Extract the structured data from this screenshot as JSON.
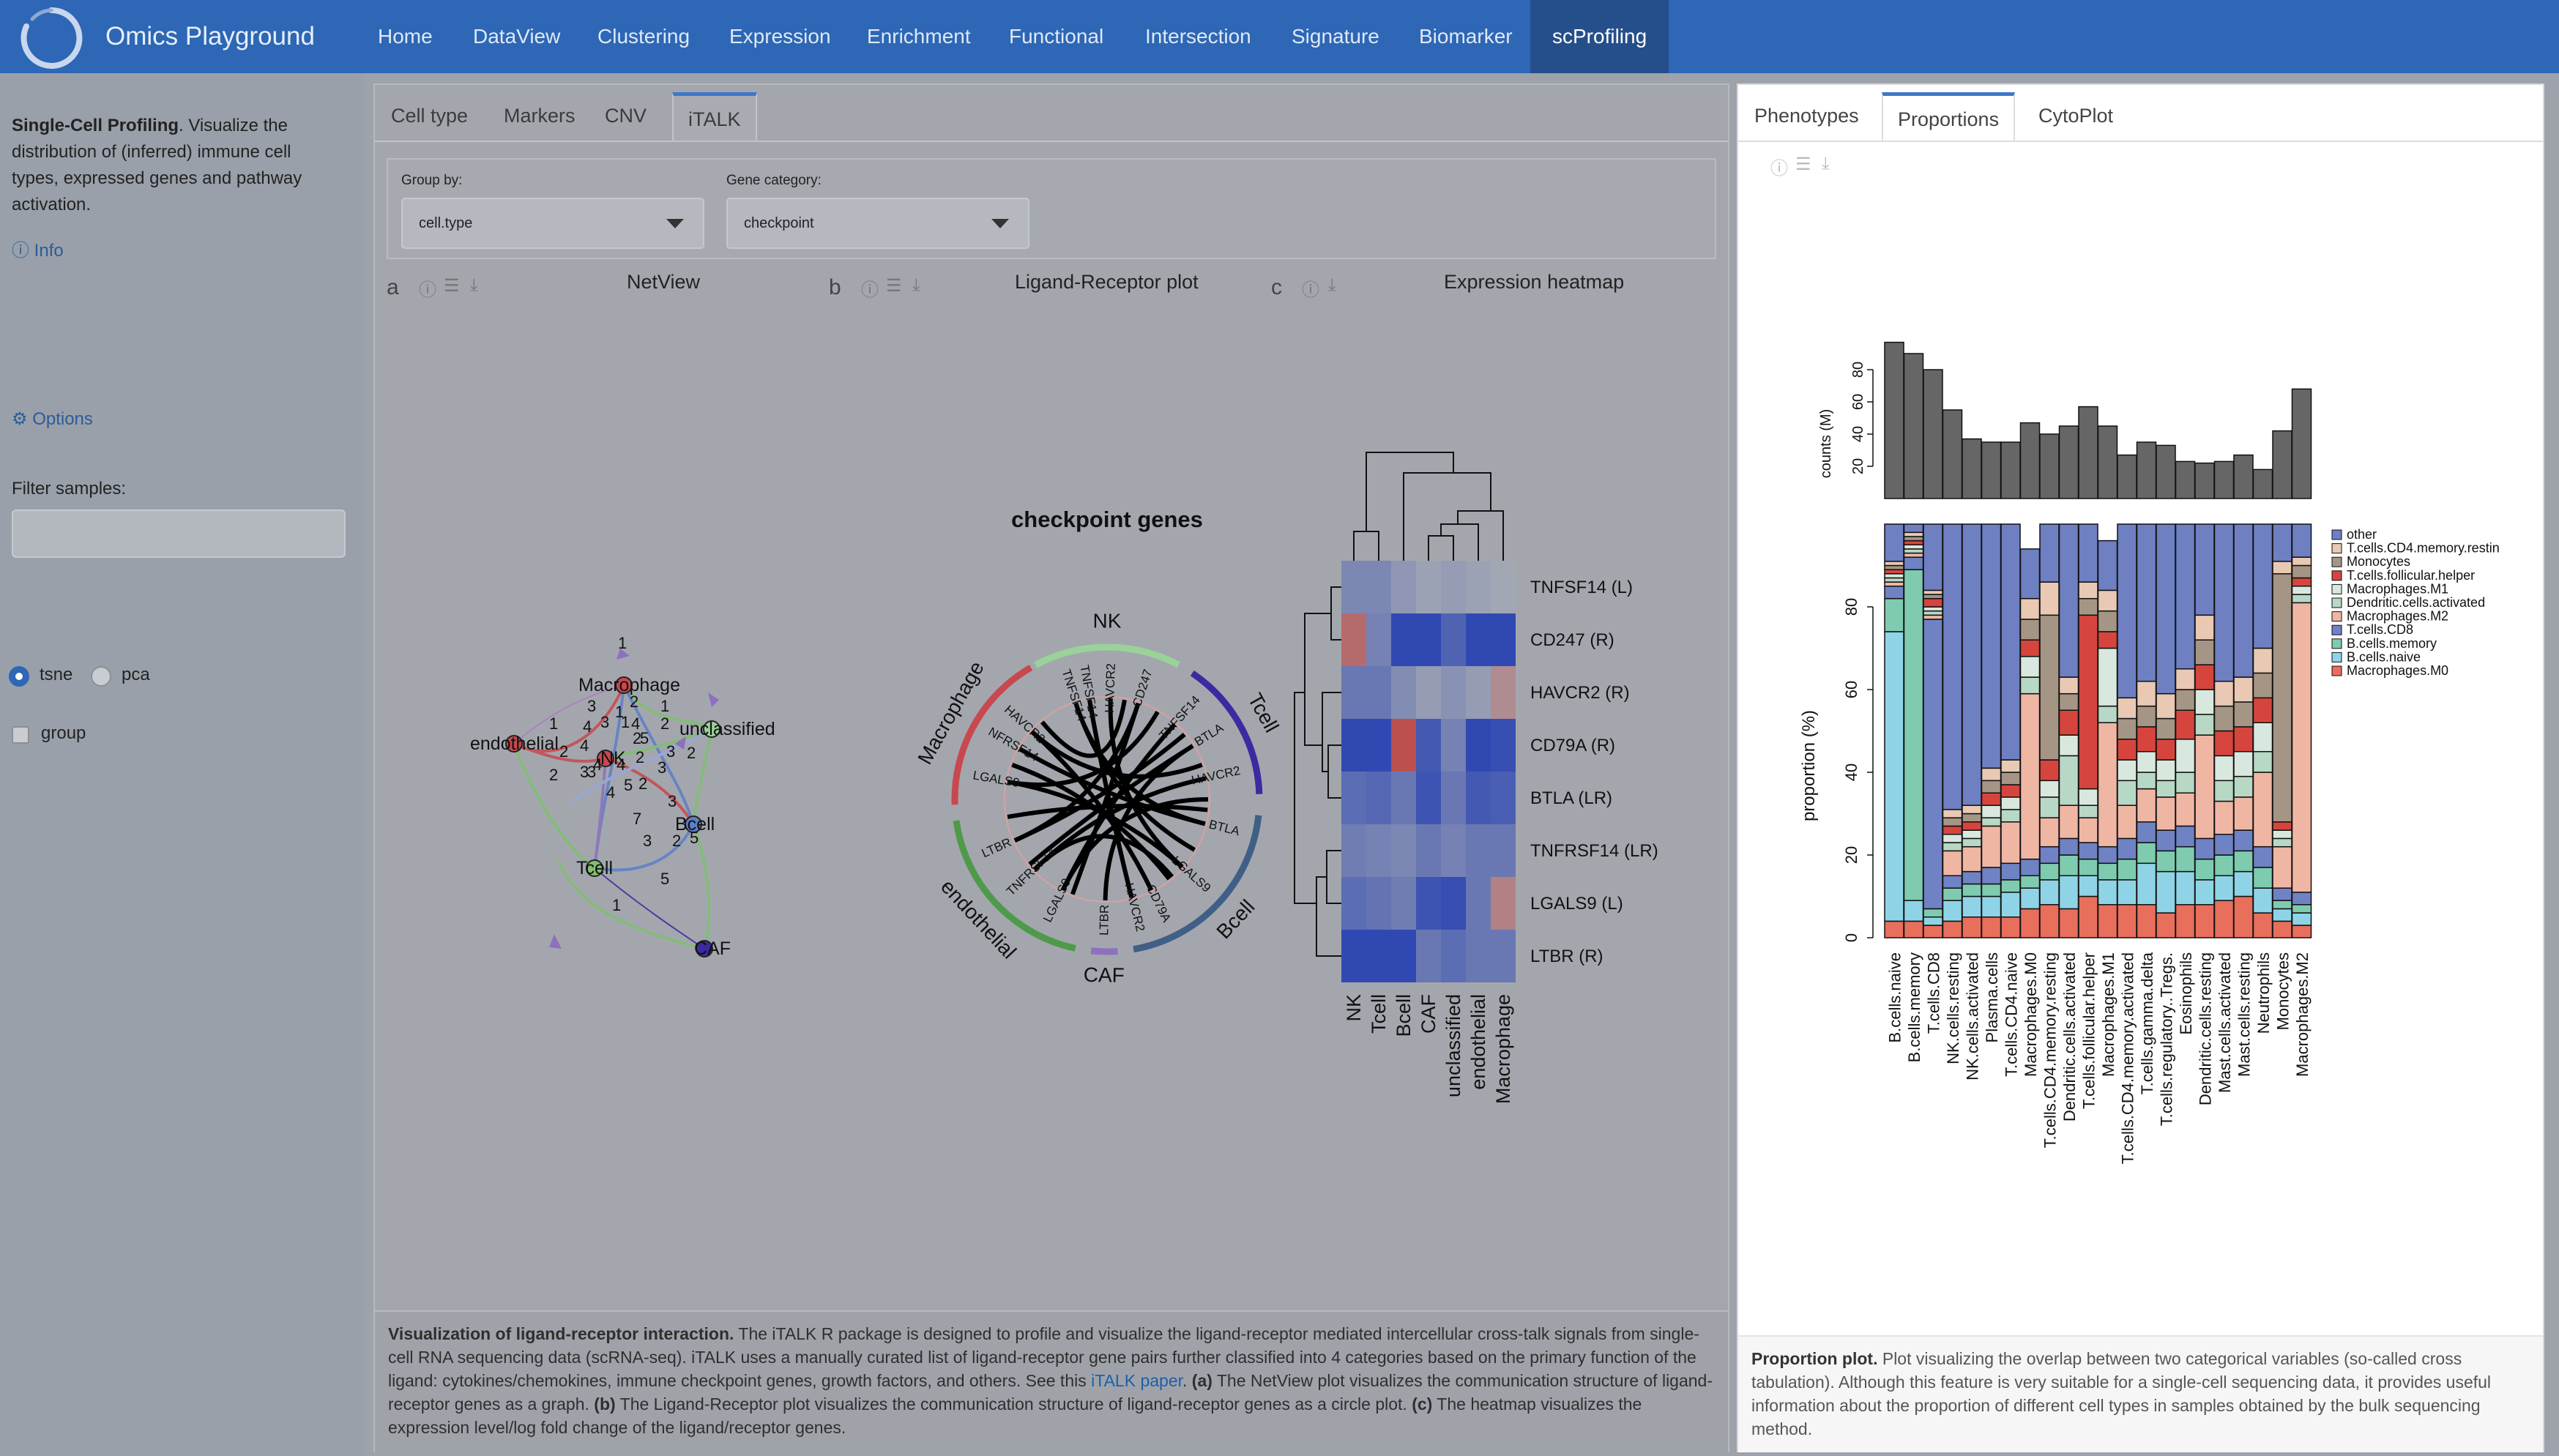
{
  "navbar": {
    "brand": "Omics Playground",
    "items": [
      "Home",
      "DataView",
      "Clustering",
      "Expression",
      "Enrichment",
      "Functional",
      "Intersection",
      "Signature",
      "Biomarker",
      "scProfiling"
    ],
    "active": "scProfiling"
  },
  "sidebar": {
    "desc_bold": "Single-Cell Profiling",
    "desc_text": ". Visualize the distribution of (inferred) immune cell types, expressed genes and pathway activation.",
    "info": "Info",
    "options": "Options",
    "filter_label": "Filter samples:",
    "filter_value": "",
    "radio_tsne": "tsne",
    "radio_pca": "pca",
    "radio_selected": "tsne",
    "group_label": "group"
  },
  "left_tabs": [
    "Cell type",
    "Markers",
    "CNV",
    "iTALK"
  ],
  "left_active_tab": "iTALK",
  "controls": {
    "group_by_label": "Group by:",
    "group_by_value": "cell.type",
    "gene_category_label": "Gene category:",
    "gene_category_value": "checkpoint"
  },
  "panels": {
    "a": {
      "letter": "a",
      "title": "NetView"
    },
    "b": {
      "letter": "b",
      "title": "Ligand-Receptor plot"
    },
    "c": {
      "letter": "c",
      "title": "Expression heatmap"
    }
  },
  "netview": {
    "nodes": [
      "Macrophage",
      "endothelial",
      "NK",
      "unclassified",
      "Bcell",
      "Tcell",
      "CAF"
    ],
    "edge_labels": [
      "1",
      "1",
      "3",
      "2",
      "1",
      "4",
      "3",
      "1",
      "4",
      "1",
      "2",
      "2",
      "2",
      "4",
      "5",
      "2",
      "3",
      "2",
      "3",
      "4",
      "4",
      "2",
      "3",
      "3",
      "4",
      "5",
      "2",
      "7",
      "3",
      "3",
      "2",
      "5",
      "5",
      "1"
    ]
  },
  "circos": {
    "title": "checkpoint genes",
    "sectors": [
      "NK",
      "Tcell",
      "Bcell",
      "CAF",
      "endothelial",
      "Macrophage"
    ],
    "sector_colors": [
      "#9ad29a",
      "#3b2aa0",
      "#3f5f86",
      "#8e6fc0",
      "#4f9a4a",
      "#c8484f"
    ],
    "genes": [
      "TNFSF14",
      "HAVCR2",
      "CD247",
      "TNFSF14",
      "BTLA",
      "HAVCR2",
      "BTLA",
      "LGALS9",
      "CD79A",
      "HAVCR2",
      "LTBR",
      "LGALS9",
      "TNFRSF14",
      "LTBR",
      "LGALS9",
      "NFRSF14",
      "HAVCR2",
      "TNFSF14"
    ]
  },
  "heatmap": {
    "rows": [
      "TNFSF14 (L)",
      "CD247 (R)",
      "HAVCR2 (R)",
      "CD79A (R)",
      "BTLA (LR)",
      "TNFRSF14 (LR)",
      "LGALS9 (L)",
      "LTBR (R)"
    ],
    "cols": [
      "NK",
      "Tcell",
      "Bcell",
      "CAF",
      "unclassified",
      "endothelial",
      "Macrophage"
    ],
    "values": [
      [
        0.35,
        0.35,
        0.2,
        0.1,
        0.15,
        0.1,
        0.05
      ],
      [
        -0.6,
        0.4,
        0.95,
        0.95,
        0.7,
        0.95,
        0.95
      ],
      [
        0.5,
        0.5,
        0.3,
        0.15,
        0.25,
        0.15,
        -0.3
      ],
      [
        0.95,
        0.95,
        -0.85,
        0.8,
        0.4,
        0.95,
        0.9
      ],
      [
        0.6,
        0.65,
        0.5,
        0.85,
        0.5,
        0.8,
        0.75
      ],
      [
        0.45,
        0.4,
        0.35,
        0.5,
        0.4,
        0.5,
        0.5
      ],
      [
        0.6,
        0.55,
        0.45,
        0.85,
        0.9,
        0.5,
        -0.4
      ],
      [
        0.95,
        0.95,
        0.95,
        0.5,
        0.6,
        0.5,
        0.5
      ]
    ]
  },
  "left_footer": {
    "bold": "Visualization of ligand-receptor interaction.",
    "text1": " The iTALK R package is designed to profile and visualize the ligand-receptor mediated intercellular cross-talk signals from single-cell RNA sequencing data (scRNA-seq). iTALK uses a manually curated list of ligand-receptor gene pairs further classified into 4 categories based on the primary function of the ligand: cytokines/chemokines, immune checkpoint genes, growth factors, and others. See this ",
    "link": "iTALK paper",
    "text2": ". ",
    "a_bold": "(a)",
    "a_text": " The NetView plot visualizes the communication structure of ligand-receptor genes as a graph. ",
    "b_bold": "(b)",
    "b_text": " The Ligand-Receptor plot visualizes the communication structure of ligand-receptor genes as a circle plot. ",
    "c_bold": "(c)",
    "c_text": " The heatmap visualizes the expression level/log fold change of the ligand/receptor genes."
  },
  "right_tabs": [
    "Phenotypes",
    "Proportions",
    "CytoPlot"
  ],
  "right_active_tab": "Proportions",
  "right_footer": {
    "bold": "Proportion plot.",
    "text": " Plot visualizing the overlap between two categorical variables (so-called cross tabulation). Although this feature is very suitable for a single-cell sequencing data, it provides useful information about the proportion of different cell types in samples obtained by the bulk sequencing method."
  },
  "chart_data": {
    "type": "bar",
    "top_ylabel": "counts (M)",
    "top_yticks": [
      20,
      40,
      60,
      80
    ],
    "ylabel": "proportion (%)",
    "yticks": [
      0,
      20,
      40,
      60,
      80
    ],
    "ylim": [
      0,
      100
    ],
    "categories": [
      "B.cells.naive",
      "B.cells.memory",
      "T.cells.CD8",
      "NK.cells.resting",
      "NK.cells.activated",
      "Plasma.cells",
      "T.cells.CD4.naive",
      "Macrophages.M0",
      "T.cells.CD4.memory.resting",
      "Dendritic.cells.activated",
      "T.cells.follicular.helper",
      "Macrophages.M1",
      "T.cells.CD4.memory.activated",
      "T.cells.gamma.delta",
      "T.cells.regulatory..Tregs.",
      "Eosinophils",
      "Dendritic.cells.resting",
      "Mast.cells.activated",
      "Mast.cells.resting",
      "Neutrophils",
      "Monocytes",
      "Macrophages.M2"
    ],
    "counts": [
      97,
      90,
      80,
      55,
      37,
      35,
      35,
      47,
      40,
      45,
      57,
      45,
      27,
      35,
      33,
      23,
      22,
      23,
      27,
      18,
      42,
      68
    ],
    "legend": [
      "other",
      "T.cells.CD4.memory.restin",
      "Monocytes",
      "T.cells.follicular.helper",
      "Macrophages.M1",
      "Dendritic.cells.activated",
      "Macrophages.M2",
      "T.cells.CD8",
      "B.cells.memory",
      "B.cells.naive",
      "Macrophages.M0"
    ],
    "legend_colors": [
      "#6e7fc2",
      "#e9c9b4",
      "#a59584",
      "#d6453d",
      "#d9e8de",
      "#b7d8c4",
      "#f0b6a4",
      "#6f82c4",
      "#7fcbb0",
      "#8fd4e6",
      "#e86f5c"
    ],
    "series": [
      {
        "name": "Macrophages.M0",
        "values": [
          4,
          4,
          3,
          4,
          5,
          5,
          5,
          7,
          8,
          7,
          10,
          8,
          8,
          8,
          6,
          8,
          8,
          9,
          10,
          6,
          4,
          3
        ]
      },
      {
        "name": "B.cells.naive",
        "values": [
          70,
          5,
          2,
          5,
          5,
          5,
          6,
          5,
          6,
          8,
          5,
          6,
          6,
          10,
          10,
          8,
          6,
          6,
          6,
          6,
          3,
          3
        ]
      },
      {
        "name": "B.cells.memory",
        "values": [
          8,
          80,
          2,
          3,
          3,
          3,
          3,
          3,
          4,
          5,
          4,
          4,
          5,
          5,
          5,
          6,
          5,
          5,
          5,
          5,
          2,
          2
        ]
      },
      {
        "name": "T.cells.CD8",
        "values": [
          3,
          3,
          70,
          3,
          3,
          4,
          4,
          4,
          4,
          4,
          4,
          4,
          5,
          5,
          5,
          5,
          5,
          5,
          5,
          5,
          3,
          3
        ]
      },
      {
        "name": "Macrophages.M2",
        "values": [
          1,
          1,
          1,
          6,
          6,
          10,
          10,
          40,
          7,
          8,
          6,
          30,
          8,
          8,
          8,
          8,
          25,
          8,
          8,
          18,
          10,
          70
        ]
      },
      {
        "name": "Dendritic.cells.activated",
        "values": [
          1,
          1,
          1,
          2,
          2,
          2,
          3,
          4,
          5,
          12,
          3,
          4,
          6,
          4,
          4,
          5,
          5,
          5,
          5,
          5,
          2,
          2
        ]
      },
      {
        "name": "Macrophages.M1",
        "values": [
          1,
          1,
          1,
          2,
          2,
          3,
          3,
          5,
          4,
          5,
          4,
          14,
          5,
          5,
          5,
          8,
          6,
          6,
          6,
          7,
          2,
          2
        ]
      },
      {
        "name": "T.cells.follicular.helper",
        "values": [
          1,
          1,
          2,
          2,
          2,
          3,
          3,
          4,
          5,
          6,
          42,
          4,
          5,
          6,
          5,
          7,
          6,
          6,
          6,
          6,
          2,
          2
        ]
      },
      {
        "name": "Monocytes",
        "values": [
          1,
          1,
          1,
          2,
          2,
          3,
          3,
          5,
          35,
          4,
          4,
          5,
          5,
          5,
          5,
          5,
          6,
          6,
          6,
          6,
          60,
          3
        ]
      },
      {
        "name": "T.cells.CD4.memory.restin",
        "values": [
          1,
          1,
          1,
          2,
          2,
          3,
          3,
          5,
          8,
          4,
          4,
          5,
          5,
          6,
          6,
          5,
          6,
          6,
          6,
          6,
          3,
          2
        ]
      },
      {
        "name": "other",
        "values": [
          9,
          2,
          16,
          69,
          68,
          59,
          57,
          12,
          14,
          37,
          14,
          12,
          42,
          38,
          41,
          35,
          22,
          38,
          37,
          30,
          9,
          8
        ]
      }
    ]
  }
}
